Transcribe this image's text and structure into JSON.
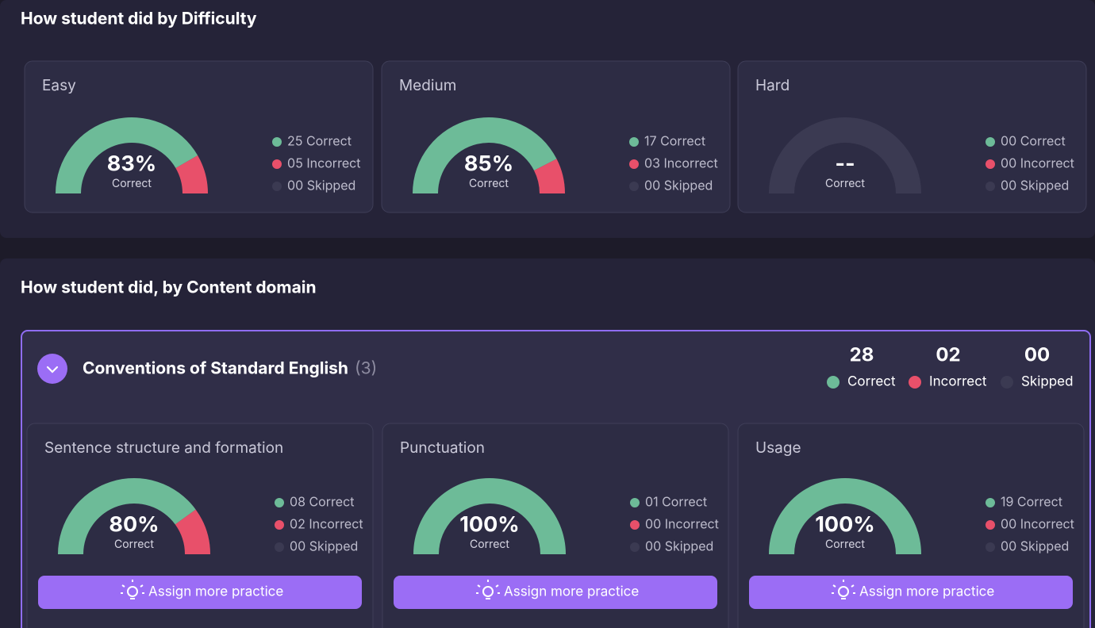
{
  "difficulty": {
    "title": "How student did by Difficulty",
    "cards": [
      {
        "label": "Easy",
        "score": "83%",
        "caption": "Correct",
        "correct": {
          "value": 25,
          "label": "25 Correct"
        },
        "incorrect": {
          "value": 5,
          "label": "05 Incorrect"
        },
        "skipped": {
          "value": 0,
          "label": "00 Skipped"
        }
      },
      {
        "label": "Medium",
        "score": "85%",
        "caption": "Correct",
        "correct": {
          "value": 17,
          "label": "17 Correct"
        },
        "incorrect": {
          "value": 3,
          "label": "03 Incorrect"
        },
        "skipped": {
          "value": 0,
          "label": "00 Skipped"
        }
      },
      {
        "label": "Hard",
        "score": "--",
        "caption": "Correct",
        "correct": {
          "value": 0,
          "label": "00 Correct"
        },
        "incorrect": {
          "value": 0,
          "label": "00 Incorrect"
        },
        "skipped": {
          "value": 0,
          "label": "00 Skipped"
        }
      }
    ]
  },
  "content_domain": {
    "title": "How student did, by Content domain",
    "domain": {
      "name": "Conventions of Standard English",
      "count": "(3)",
      "totals": [
        {
          "count": "28",
          "label": "Correct"
        },
        {
          "count": "02",
          "label": "Incorrect"
        },
        {
          "count": "00",
          "label": "Skipped"
        }
      ]
    },
    "cards": [
      {
        "label": "Sentence structure and formation",
        "score": "80%",
        "caption": "Correct",
        "correct": {
          "value": 8,
          "label": "08 Correct"
        },
        "incorrect": {
          "value": 2,
          "label": "02 Incorrect"
        },
        "skipped": {
          "value": 0,
          "label": "00 Skipped"
        },
        "action": "Assign more practice"
      },
      {
        "label": "Punctuation",
        "score": "100%",
        "caption": "Correct",
        "correct": {
          "value": 1,
          "label": "01 Correct"
        },
        "incorrect": {
          "value": 0,
          "label": "00 Incorrect"
        },
        "skipped": {
          "value": 0,
          "label": "00 Skipped"
        },
        "action": "Assign more practice"
      },
      {
        "label": "Usage",
        "score": "100%",
        "caption": "Correct",
        "correct": {
          "value": 19,
          "label": "19 Correct"
        },
        "incorrect": {
          "value": 0,
          "label": "00 Incorrect"
        },
        "skipped": {
          "value": 0,
          "label": "00 Skipped"
        },
        "action": "Assign more practice"
      }
    ]
  }
}
